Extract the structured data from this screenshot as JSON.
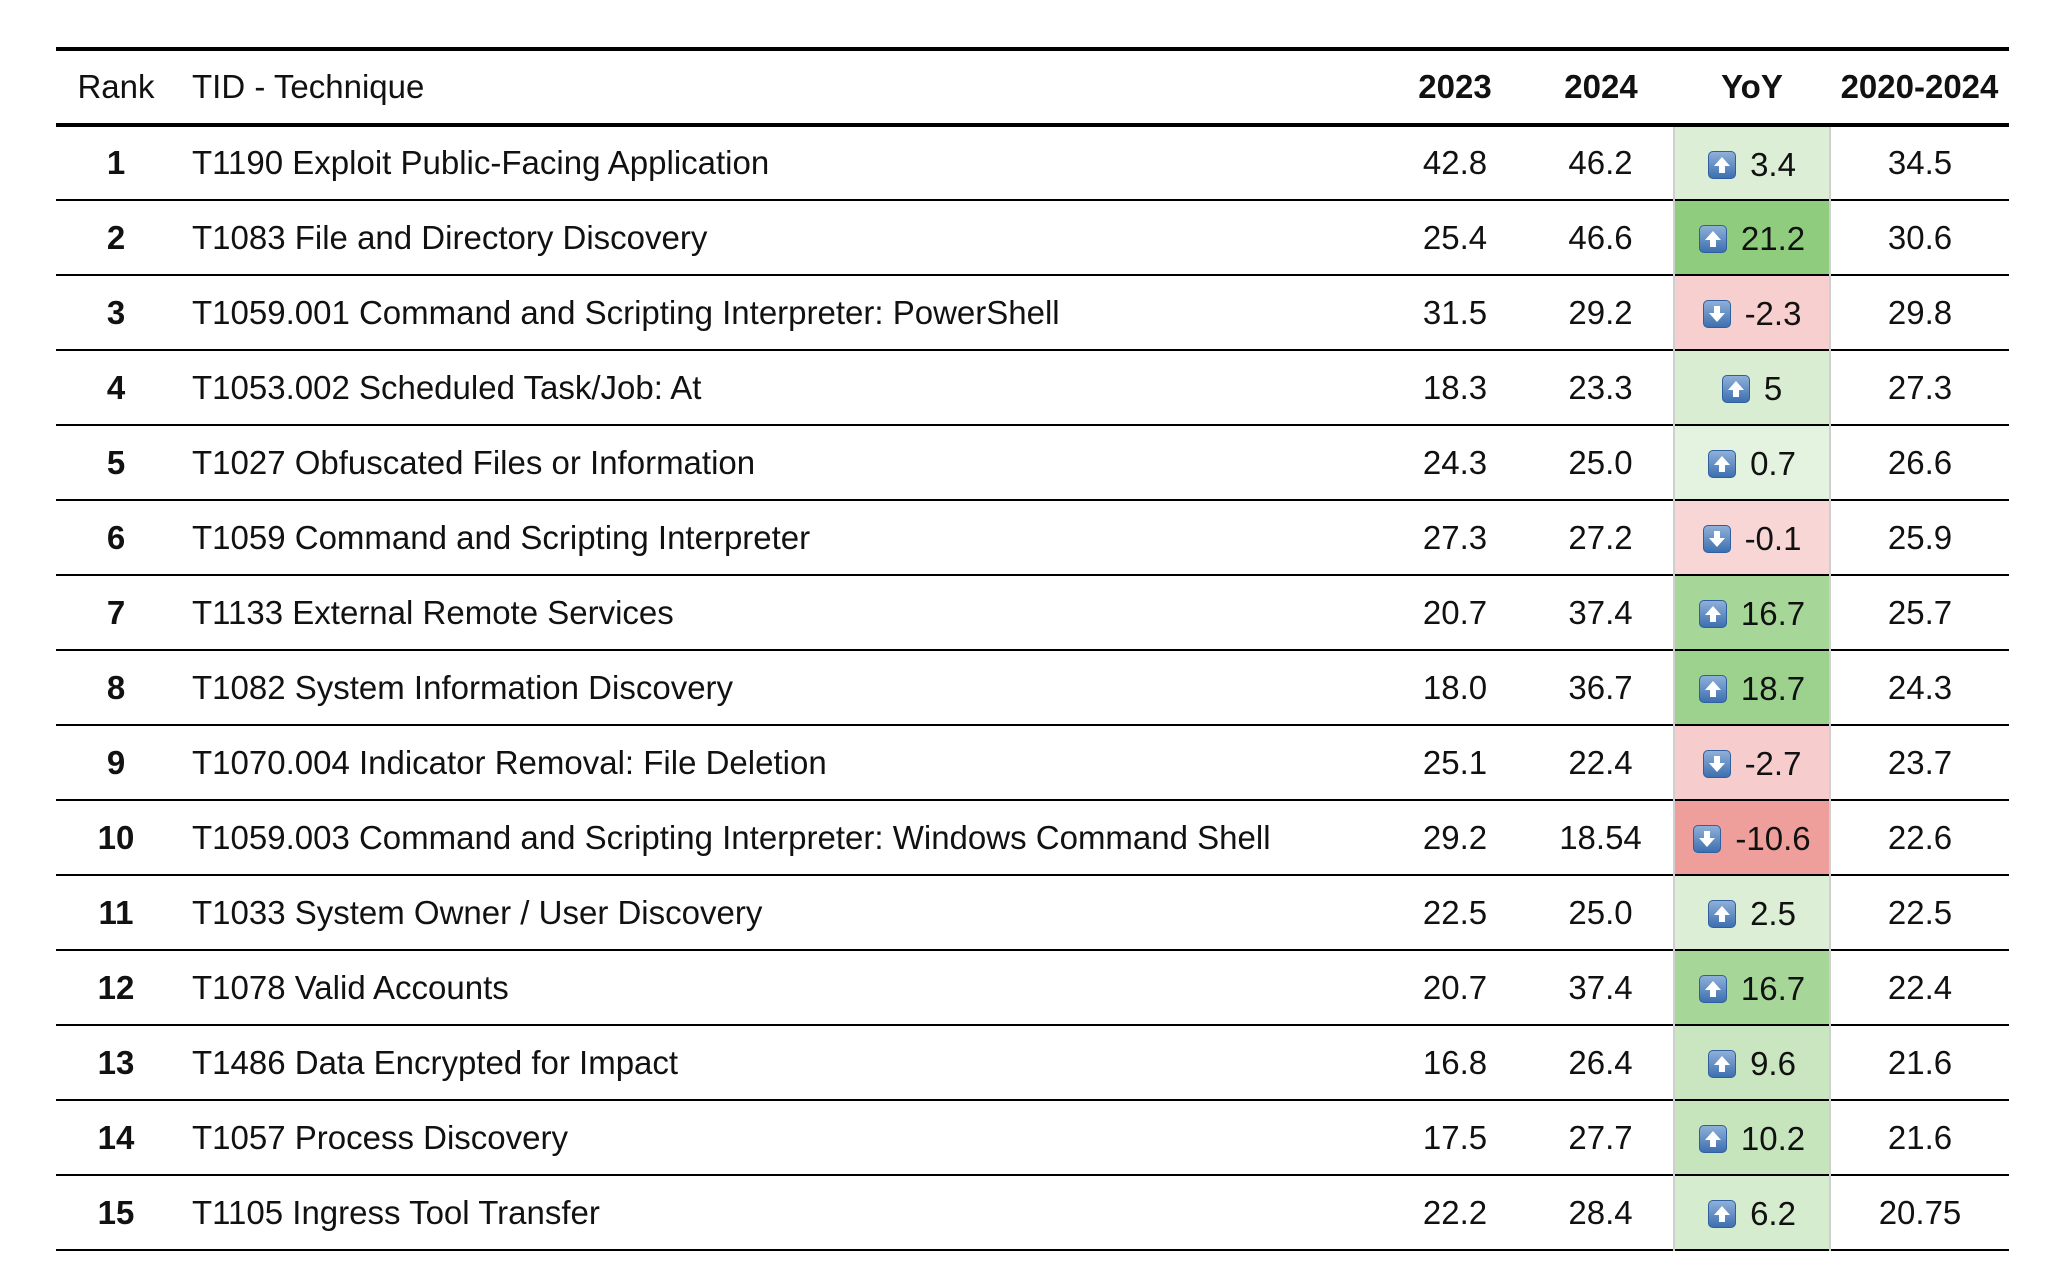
{
  "table": {
    "headers": {
      "rank": "Rank",
      "technique": "TID - Technique",
      "y2023": "2023",
      "y2024": "2024",
      "yoy": "YoY",
      "avg": "2020-2024"
    },
    "rows": [
      {
        "rank": "1",
        "technique": "T1190 Exploit Public-Facing Application",
        "y2023": "42.8",
        "y2024": "46.2",
        "yoy": "3.4",
        "avg": "34.5",
        "dir": "up",
        "color": "#dcefd6"
      },
      {
        "rank": "2",
        "technique": "T1083 File and Directory Discovery",
        "y2023": "25.4",
        "y2024": "46.6",
        "yoy": "21.2",
        "avg": "30.6",
        "dir": "up",
        "color": "#8fcc7e"
      },
      {
        "rank": "3",
        "technique": "T1059.001 Command and Scripting Interpreter: PowerShell",
        "y2023": "31.5",
        "y2024": "29.2",
        "yoy": "-2.3",
        "avg": "29.8",
        "dir": "down",
        "color": "#f7cfcf"
      },
      {
        "rank": "4",
        "technique": "T1053.002 Scheduled Task/Job: At",
        "y2023": "18.3",
        "y2024": "23.3",
        "yoy": "5",
        "avg": "27.3",
        "dir": "up",
        "color": "#d8edd1"
      },
      {
        "rank": "5",
        "technique": "T1027 Obfuscated Files or Information",
        "y2023": "24.3",
        "y2024": "25.0",
        "yoy": "0.7",
        "avg": "26.6",
        "dir": "up",
        "color": "#e4f3df"
      },
      {
        "rank": "6",
        "technique": "T1059 Command and Scripting Interpreter",
        "y2023": "27.3",
        "y2024": "27.2",
        "yoy": "-0.1",
        "avg": "25.9",
        "dir": "down",
        "color": "#f8d6d6"
      },
      {
        "rank": "7",
        "technique": "T1133 External Remote Services",
        "y2023": "20.7",
        "y2024": "37.4",
        "yoy": "16.7",
        "avg": "25.7",
        "dir": "up",
        "color": "#a6d698"
      },
      {
        "rank": "8",
        "technique": "T1082 System Information Discovery",
        "y2023": "18.0",
        "y2024": "36.7",
        "yoy": "18.7",
        "avg": "24.3",
        "dir": "up",
        "color": "#9cd28d"
      },
      {
        "rank": "9",
        "technique": "T1070.004 Indicator Removal: File Deletion",
        "y2023": "25.1",
        "y2024": "22.4",
        "yoy": "-2.7",
        "avg": "23.7",
        "dir": "down",
        "color": "#f6cccc"
      },
      {
        "rank": "10",
        "technique": "T1059.003 Command and Scripting Interpreter: Windows Command Shell",
        "y2023": "29.2",
        "y2024": "18.54",
        "yoy": "-10.6",
        "avg": "22.6",
        "dir": "down",
        "color": "#ee9f9b"
      },
      {
        "rank": "11",
        "technique": "T1033 System Owner / User Discovery",
        "y2023": "22.5",
        "y2024": "25.0",
        "yoy": "2.5",
        "avg": "22.5",
        "dir": "up",
        "color": "#dcefd6"
      },
      {
        "rank": "12",
        "technique": "T1078 Valid Accounts",
        "y2023": "20.7",
        "y2024": "37.4",
        "yoy": "16.7",
        "avg": "22.4",
        "dir": "up",
        "color": "#a6d698"
      },
      {
        "rank": "13",
        "technique": "T1486 Data Encrypted for Impact",
        "y2023": "16.8",
        "y2024": "26.4",
        "yoy": "9.6",
        "avg": "21.6",
        "dir": "up",
        "color": "#c9e6c0"
      },
      {
        "rank": "14",
        "technique": "T1057 Process Discovery",
        "y2023": "17.5",
        "y2024": "27.7",
        "yoy": "10.2",
        "avg": "21.6",
        "dir": "up",
        "color": "#c6e5bd"
      },
      {
        "rank": "15",
        "technique": "T1105 Ingress Tool Transfer",
        "y2023": "22.2",
        "y2024": "28.4",
        "yoy": "6.2",
        "avg": "20.75",
        "dir": "up",
        "color": "#d6ecce"
      }
    ]
  }
}
